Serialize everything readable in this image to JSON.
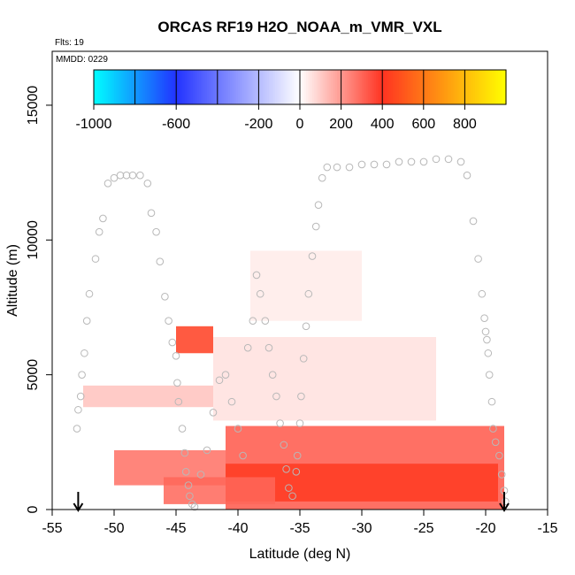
{
  "chart_data": {
    "type": "heatmap",
    "title": "ORCAS RF19 H2O_NOAA_m_VMR_VXL",
    "flts_note": "Flts: 19",
    "mmdd_note": "MMDD: 0229",
    "xlabel": "Latitude (deg N)",
    "ylabel": "Altitude (m)",
    "xlim": [
      -55,
      -15
    ],
    "ylim": [
      0,
      17000
    ],
    "xticks": [
      -55,
      -50,
      -45,
      -40,
      -35,
      -30,
      -25,
      -20,
      -15
    ],
    "yticks": [
      0,
      5000,
      10000,
      15000
    ],
    "colorbar": {
      "range": [
        -1000,
        1000
      ],
      "ticks": [
        -1000,
        -600,
        -200,
        0,
        200,
        400,
        600,
        800
      ],
      "colors": {
        "min": "#00ffff",
        "neg_mid": "#2233ff",
        "zero": "#ffffff",
        "pos_mid": "#ff3322",
        "max": "#ffff00"
      }
    },
    "heat_regions": [
      {
        "lat": [
          -41,
          -18.5
        ],
        "alt": [
          0,
          3100
        ],
        "value": 330
      },
      {
        "lat": [
          -41,
          -19
        ],
        "alt": [
          300,
          1700
        ],
        "value": 420
      },
      {
        "lat": [
          -50,
          -41
        ],
        "alt": [
          900,
          2200
        ],
        "value": 280
      },
      {
        "lat": [
          -46,
          -37
        ],
        "alt": [
          200,
          1200
        ],
        "value": 300
      },
      {
        "lat": [
          -52.5,
          -42
        ],
        "alt": [
          3800,
          4600
        ],
        "value": 120
      },
      {
        "lat": [
          -42,
          -24
        ],
        "alt": [
          3300,
          6400
        ],
        "value": 60
      },
      {
        "lat": [
          -39,
          -30
        ],
        "alt": [
          7000,
          9600
        ],
        "value": 40
      },
      {
        "lat": [
          -45,
          -42
        ],
        "alt": [
          5800,
          6800
        ],
        "value": 430
      }
    ],
    "flight_track": [
      [
        -53.0,
        3000
      ],
      [
        -52.9,
        3700
      ],
      [
        -52.7,
        4200
      ],
      [
        -52.6,
        5000
      ],
      [
        -52.4,
        5800
      ],
      [
        -52.2,
        7000
      ],
      [
        -52.0,
        8000
      ],
      [
        -51.5,
        9300
      ],
      [
        -51.2,
        10300
      ],
      [
        -50.9,
        10800
      ],
      [
        -50.5,
        12100
      ],
      [
        -50.0,
        12300
      ],
      [
        -49.5,
        12400
      ],
      [
        -49.0,
        12400
      ],
      [
        -48.5,
        12400
      ],
      [
        -47.9,
        12400
      ],
      [
        -47.3,
        12100
      ],
      [
        -47.0,
        11000
      ],
      [
        -46.6,
        10300
      ],
      [
        -46.3,
        9200
      ],
      [
        -45.9,
        7900
      ],
      [
        -45.6,
        7000
      ],
      [
        -45.3,
        6200
      ],
      [
        -45.0,
        5700
      ],
      [
        -44.9,
        4700
      ],
      [
        -44.8,
        4000
      ],
      [
        -44.5,
        3000
      ],
      [
        -44.3,
        2100
      ],
      [
        -44.2,
        1400
      ],
      [
        -44.0,
        900
      ],
      [
        -43.9,
        500
      ],
      [
        -43.7,
        200
      ],
      [
        -43.5,
        100
      ],
      [
        -43.0,
        1300
      ],
      [
        -42.5,
        2200
      ],
      [
        -42.0,
        3600
      ],
      [
        -41.5,
        4800
      ],
      [
        -41.0,
        5000
      ],
      [
        -40.5,
        4000
      ],
      [
        -40.0,
        3000
      ],
      [
        -39.6,
        2000
      ],
      [
        -39.2,
        6000
      ],
      [
        -38.8,
        7000
      ],
      [
        -38.5,
        8700
      ],
      [
        -38.2,
        8000
      ],
      [
        -37.8,
        7000
      ],
      [
        -37.5,
        6000
      ],
      [
        -37.2,
        5000
      ],
      [
        -36.9,
        4200
      ],
      [
        -36.6,
        3200
      ],
      [
        -36.3,
        2400
      ],
      [
        -36.1,
        1500
      ],
      [
        -35.9,
        800
      ],
      [
        -35.6,
        500
      ],
      [
        -35.3,
        1400
      ],
      [
        -35.2,
        2000
      ],
      [
        -35.0,
        3200
      ],
      [
        -34.9,
        4200
      ],
      [
        -34.7,
        5600
      ],
      [
        -34.5,
        6800
      ],
      [
        -34.3,
        8000
      ],
      [
        -34.0,
        9400
      ],
      [
        -33.7,
        10500
      ],
      [
        -33.5,
        11300
      ],
      [
        -33.2,
        12300
      ],
      [
        -32.8,
        12700
      ],
      [
        -32.0,
        12700
      ],
      [
        -31.0,
        12700
      ],
      [
        -30.0,
        12800
      ],
      [
        -29.0,
        12800
      ],
      [
        -28.0,
        12800
      ],
      [
        -27.0,
        12900
      ],
      [
        -26.0,
        12900
      ],
      [
        -25.0,
        12900
      ],
      [
        -24.0,
        13000
      ],
      [
        -23.0,
        13000
      ],
      [
        -22.0,
        12900
      ],
      [
        -21.5,
        12400
      ],
      [
        -21.0,
        10700
      ],
      [
        -20.6,
        9300
      ],
      [
        -20.3,
        8000
      ],
      [
        -20.1,
        7100
      ],
      [
        -20.0,
        6600
      ],
      [
        -19.9,
        6300
      ],
      [
        -19.8,
        5800
      ],
      [
        -19.7,
        5000
      ],
      [
        -19.5,
        4000
      ],
      [
        -19.4,
        3000
      ],
      [
        -19.2,
        2500
      ],
      [
        -18.9,
        2000
      ],
      [
        -18.7,
        1300
      ],
      [
        -18.5,
        700
      ],
      [
        -18.4,
        300
      ]
    ],
    "arrows": [
      {
        "lat": -52.9,
        "label": "down-arrow-west"
      },
      {
        "lat": -18.5,
        "label": "down-arrow-east"
      }
    ]
  }
}
